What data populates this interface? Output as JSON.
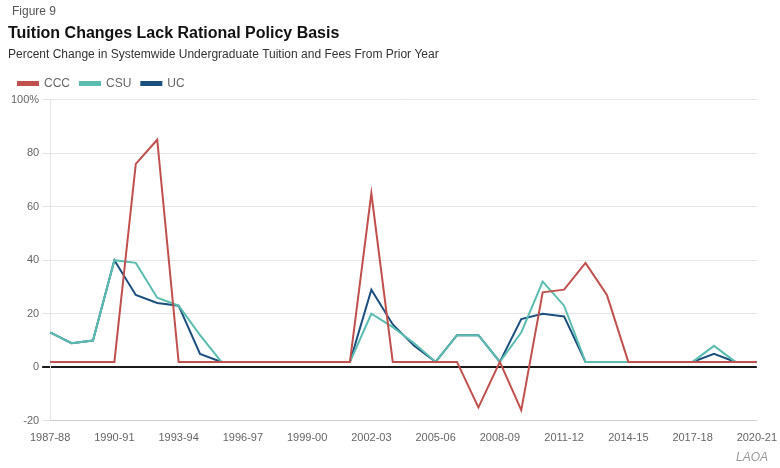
{
  "chart_data": {
    "type": "line",
    "title": "Tuition Changes Lack Rational Policy Basis",
    "subtitle": "Percent Change in Systemwide Undergraduate Tuition and Fees From Prior Year",
    "annotations": [
      "Figure 9",
      "LAOA"
    ],
    "categories": [
      "1987-88",
      null,
      null,
      "1990-91",
      null,
      null,
      "1993-94",
      null,
      null,
      "1996-97",
      null,
      null,
      "1999-00",
      null,
      null,
      "2002-03",
      null,
      null,
      "2005-06",
      null,
      null,
      "2008-09",
      null,
      null,
      "2011-12",
      null,
      null,
      "2014-15",
      null,
      null,
      "2017-18",
      null,
      null,
      "2020-21"
    ],
    "series": [
      {
        "name": "CCC",
        "color": "#c0504d",
        "values": [
          2,
          2,
          2,
          2,
          76,
          85,
          2,
          2,
          2,
          2,
          2,
          2,
          2,
          2,
          2,
          65,
          2,
          2,
          2,
          2,
          -15,
          2,
          -16,
          28,
          29,
          39,
          27,
          2,
          2,
          2,
          2,
          2,
          2,
          2
        ]
      },
      {
        "name": "CSU",
        "color": "#5bbdb0",
        "values": [
          13,
          9,
          10,
          40,
          39,
          26,
          23,
          12,
          2,
          2,
          2,
          2,
          2,
          2,
          2,
          20,
          15,
          9,
          2,
          12,
          12,
          2,
          13,
          32,
          23,
          2,
          2,
          2,
          2,
          2,
          2,
          8,
          2,
          2
        ]
      },
      {
        "name": "UC",
        "color": "#1b4f7e",
        "values": [
          13,
          9,
          10,
          40,
          27,
          24,
          23,
          5,
          2,
          2,
          2,
          2,
          2,
          2,
          2,
          29,
          16,
          8,
          2,
          12,
          12,
          2,
          18,
          20,
          19,
          2,
          2,
          2,
          2,
          2,
          2,
          5,
          2,
          2
        ]
      }
    ],
    "ylim": [
      -20,
      100
    ],
    "yticks": [
      -20,
      0,
      20,
      40,
      60,
      80,
      {
        "value": 100,
        "label": "100%"
      }
    ],
    "grid": true,
    "legend": "top"
  }
}
